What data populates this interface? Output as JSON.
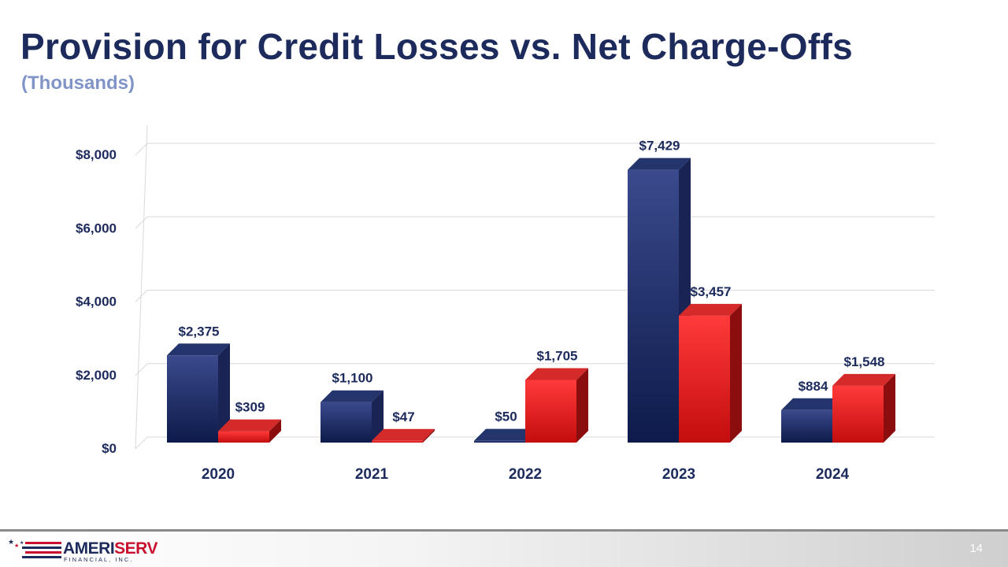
{
  "slide": {
    "title": "Provision for Credit Losses vs. Net Charge-Offs",
    "subtitle": "(Thousands)",
    "page_number": "14"
  },
  "logo": {
    "name_blue": "AMERI",
    "name_red": "SERV",
    "tagline": "FINANCIAL, INC.",
    "colors": {
      "blue": "#1c2a5c",
      "red": "#c8102e"
    }
  },
  "chart_data": {
    "type": "bar",
    "categories": [
      "2020",
      "2021",
      "2022",
      "2023",
      "2024"
    ],
    "series": [
      {
        "values": [
          2375,
          1100,
          50,
          7429,
          884
        ],
        "color": "#1f2f6b"
      },
      {
        "values": [
          309,
          47,
          1705,
          3457,
          1548
        ],
        "color": "#e8232a"
      }
    ],
    "data_labels": [
      [
        "$2,375",
        "$1,100",
        "$50",
        "$7,429",
        "$884"
      ],
      [
        "$309",
        "$47",
        "$1,705",
        "$3,457",
        "$1,548"
      ]
    ],
    "y_ticks": [
      0,
      2000,
      4000,
      6000,
      8000
    ],
    "y_tick_labels": [
      "$0",
      "$2,000",
      "$4,000",
      "$6,000",
      "$8,000"
    ],
    "ylim": [
      0,
      8000
    ],
    "grid": true,
    "legend": "none",
    "style": "3d-clustered"
  }
}
